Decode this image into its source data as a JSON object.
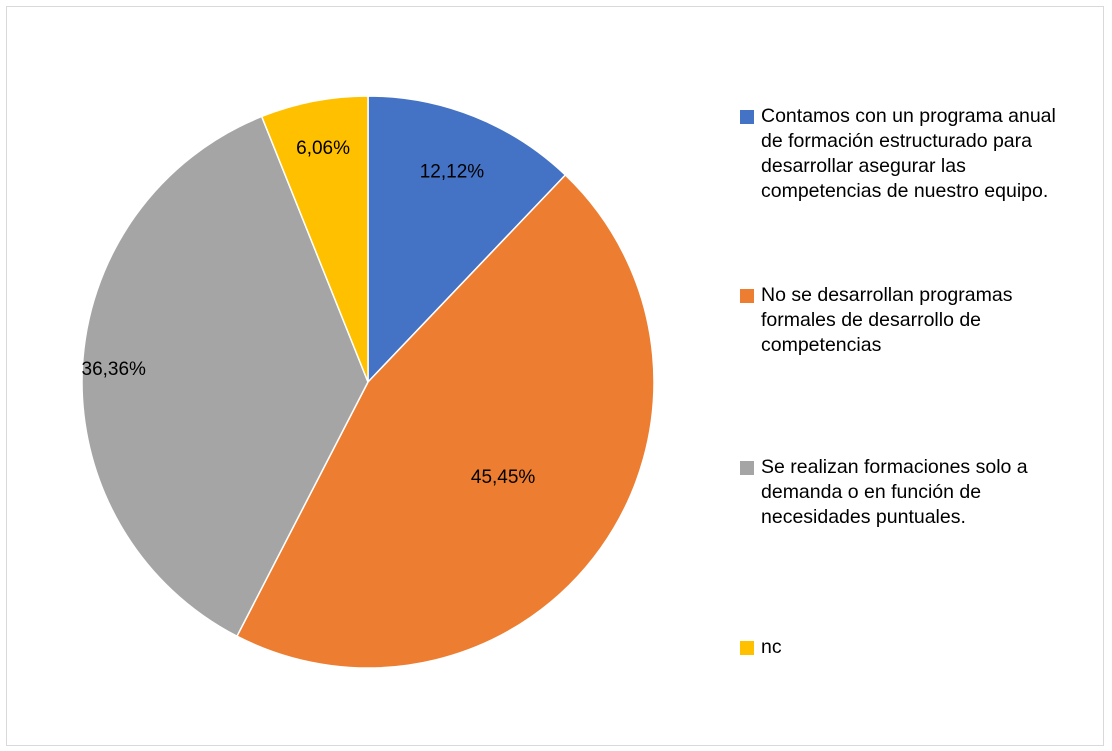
{
  "chart_data": {
    "type": "pie",
    "title": "",
    "series": [
      {
        "values": [
          12.12,
          45.45,
          36.36,
          6.06
        ],
        "labels": [
          "12,12%",
          "45,45%",
          "36,36%",
          "6,06%"
        ],
        "colors": [
          "#4472c4",
          "#ed7d31",
          "#a5a5a5",
          "#ffc000"
        ]
      }
    ],
    "categories": [
      "Contamos con un programa anual de formación estructurado para desarrollar asegurar las competencias  de nuestro equipo.",
      "No se desarrollan programas formales de desarrollo de competencias",
      "Se realizan formaciones solo a demanda o en función de necesidades puntuales.",
      "nc"
    ],
    "start_angle_deg": 0,
    "direction": "clockwise",
    "legend_position": "right"
  }
}
